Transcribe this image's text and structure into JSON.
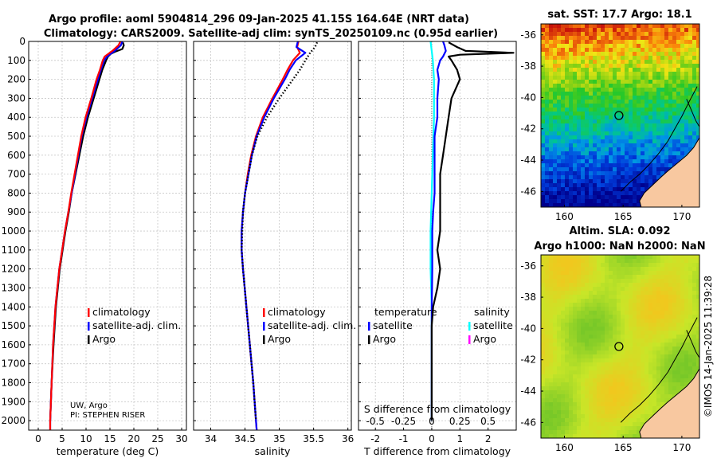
{
  "header": {
    "line1": "Argo profile: aoml 5904814_296 09-Jan-2025 41.15S 164.64E (NRT data)",
    "line2": "Climatology: CARS2009. Satellite-adj clim: synTS_20250109.nc (0.95d earlier)"
  },
  "colors": {
    "climatology": "#ff0000",
    "satellite": "#0000ff",
    "argo": "#000000",
    "sat_temp_diff": "#00ffff",
    "sat_sal_diff": "#ff00ff",
    "land": "#f8c8a0",
    "marker": "#000000"
  },
  "chart_data": [
    {
      "id": "temperature",
      "type": "line",
      "xlabel": "temperature (deg C)",
      "xlim": [
        -2,
        31
      ],
      "ylim": [
        0,
        2050
      ],
      "y_reversed": true,
      "xticks": [
        0,
        5,
        10,
        15,
        20,
        25,
        30
      ],
      "yticks": [
        0,
        100,
        200,
        300,
        400,
        500,
        600,
        700,
        800,
        900,
        1000,
        1100,
        1200,
        1300,
        1400,
        1500,
        1600,
        1700,
        1800,
        1900,
        2000
      ],
      "legend": [
        "climatology",
        "satellite-adj. clim.",
        "Argo"
      ],
      "legend_position": "lower-right",
      "annotation": [
        "UW, Argo",
        "PI: STEPHEN RISER"
      ],
      "series": [
        {
          "name": "climatology",
          "color": "#ff0000",
          "depth": [
            0,
            20,
            50,
            80,
            100,
            150,
            200,
            300,
            400,
            500,
            600,
            700,
            800,
            900,
            1000,
            1200,
            1400,
            1600,
            1800,
            2000,
            2050
          ],
          "values": [
            17.2,
            16.8,
            15.5,
            13.9,
            13.5,
            12.9,
            12.2,
            11.1,
            9.9,
            9.0,
            8.3,
            7.6,
            6.9,
            6.3,
            5.6,
            4.4,
            3.6,
            3.1,
            2.8,
            2.5,
            2.5
          ]
        },
        {
          "name": "satellite-adj. clim.",
          "color": "#0000ff",
          "depth": [
            0,
            20,
            50,
            80,
            100,
            150,
            200,
            300,
            400,
            500,
            600,
            700,
            800,
            900,
            1000,
            1200,
            1400,
            1600,
            1800,
            2000,
            2050
          ],
          "values": [
            17.6,
            17.3,
            16.0,
            14.4,
            13.8,
            13.1,
            12.5,
            11.3,
            10.1,
            9.1,
            8.4,
            7.7,
            7.0,
            6.3,
            5.6,
            4.4,
            3.6,
            3.1,
            2.8,
            2.5,
            2.5
          ]
        },
        {
          "name": "Argo",
          "color": "#000000",
          "depth": [
            5,
            20,
            40,
            55,
            65,
            80,
            100,
            150,
            200,
            300,
            400,
            500,
            600,
            700,
            800,
            900,
            1000,
            1200,
            1400,
            1600,
            1800,
            2000
          ],
          "values": [
            17.7,
            17.9,
            17.6,
            16.0,
            15.2,
            14.6,
            14.2,
            13.4,
            12.8,
            11.6,
            10.4,
            9.4,
            8.6,
            7.8,
            7.0,
            6.4,
            5.7,
            4.5,
            3.7,
            3.2,
            2.8,
            2.5
          ]
        }
      ]
    },
    {
      "id": "salinity",
      "type": "line",
      "xlabel": "salinity",
      "xlim": [
        33.75,
        36.05
      ],
      "ylim": [
        0,
        2050
      ],
      "y_reversed": true,
      "xticks": [
        34,
        34.5,
        35,
        35.5,
        36
      ],
      "xticklabels": [
        "34",
        "34.5",
        "35",
        "35.5",
        "36"
      ],
      "legend": [
        "climatology",
        "satellite-adj. clim.",
        "Argo"
      ],
      "legend_position": "lower-right",
      "series": [
        {
          "name": "climatology",
          "color": "#ff0000",
          "depth": [
            0,
            30,
            60,
            100,
            150,
            200,
            300,
            400,
            500,
            600,
            700,
            800,
            900,
            1000,
            1100,
            1200,
            1400,
            1600,
            1800,
            2000,
            2050
          ],
          "values": [
            35.28,
            35.26,
            35.3,
            35.2,
            35.12,
            35.05,
            34.9,
            34.76,
            34.66,
            34.59,
            34.54,
            34.5,
            34.47,
            34.45,
            34.45,
            34.47,
            34.52,
            34.57,
            34.62,
            34.66,
            34.67
          ]
        },
        {
          "name": "satellite-adj. clim.",
          "color": "#0000ff",
          "depth": [
            0,
            30,
            60,
            100,
            150,
            200,
            300,
            400,
            500,
            600,
            700,
            800,
            900,
            1000,
            1100,
            1200,
            1400,
            1600,
            1800,
            2000,
            2050
          ],
          "values": [
            35.27,
            35.25,
            35.38,
            35.24,
            35.15,
            35.08,
            34.92,
            34.78,
            34.67,
            34.6,
            34.55,
            34.5,
            34.47,
            34.45,
            34.45,
            34.47,
            34.52,
            34.57,
            34.62,
            34.66,
            34.67
          ]
        },
        {
          "name": "Argo",
          "color": "#000000",
          "style": "dotted",
          "depth": [
            5,
            30,
            60,
            100,
            150,
            200,
            300,
            400,
            500,
            600,
            700,
            800,
            900,
            1000,
            1100,
            1200,
            1400,
            1600,
            1800,
            2000
          ],
          "values": [
            35.55,
            35.52,
            35.45,
            35.38,
            35.3,
            35.2,
            35.0,
            34.82,
            34.68,
            34.6,
            34.55,
            34.5,
            34.47,
            34.46,
            34.45,
            34.47,
            34.52,
            34.57,
            34.62,
            34.66
          ]
        }
      ]
    },
    {
      "id": "difference",
      "type": "line",
      "xlabel_bottom": "T difference from climatology",
      "xlabel_top": "S difference from climatology",
      "xlim": [
        -2.6,
        3.0
      ],
      "ylim": [
        0,
        2050
      ],
      "y_reversed": true,
      "xticks_T": [
        -2,
        -1,
        0,
        1,
        2
      ],
      "xticks_S": [
        -0.5,
        -0.25,
        0,
        0.25,
        0.5
      ],
      "xticklabels_S": [
        "-0.5",
        "-0.25",
        "0",
        "0.25",
        "0.5"
      ],
      "S_scale_factor": 4,
      "legend_temperature": {
        "title": "temperature",
        "items": [
          "satellite",
          "Argo"
        ]
      },
      "legend_salinity": {
        "title": "salinity",
        "items": [
          "satellite",
          "Argo"
        ]
      },
      "series": [
        {
          "name": "sat T diff",
          "color": "#0000ff",
          "depth": [
            0,
            20,
            50,
            80,
            100,
            150,
            200,
            300,
            400,
            500,
            600,
            700,
            800,
            900,
            1000,
            1100,
            1200,
            1300,
            1400,
            1500,
            1600,
            2000
          ],
          "values": [
            0.4,
            0.45,
            0.5,
            0.4,
            0.3,
            0.2,
            0.25,
            0.2,
            0.2,
            0.1,
            0.1,
            0.1,
            0.1,
            0.05,
            0.02,
            0.02,
            0.02,
            0.01,
            0.0,
            0.0,
            0.0,
            0.0
          ]
        },
        {
          "name": "Argo T diff",
          "color": "#000000",
          "depth": [
            5,
            30,
            50,
            60,
            70,
            80,
            100,
            150,
            200,
            300,
            400,
            500,
            600,
            700,
            800,
            900,
            1000,
            1100,
            1200,
            1300,
            1400,
            1500,
            2000
          ],
          "values": [
            0.6,
            0.9,
            1.2,
            2.9,
            1.0,
            0.6,
            0.7,
            0.9,
            1.0,
            0.7,
            0.6,
            0.5,
            0.4,
            0.3,
            0.3,
            0.3,
            0.3,
            0.2,
            0.3,
            0.2,
            0.05,
            0.0,
            0.0
          ]
        },
        {
          "name": "sat S diff",
          "color": "#00ffff",
          "depth": [
            0,
            50,
            100,
            200,
            400,
            600,
            800,
            1000,
            1200,
            1400,
            1600,
            2000
          ],
          "values": [
            -0.01,
            0.0,
            0.01,
            0.02,
            0.02,
            0.01,
            0.0,
            -0.01,
            -0.01,
            0.0,
            0.0,
            0.0
          ]
        }
      ]
    },
    {
      "id": "sst_map",
      "type": "heatmap",
      "title": "sat. SST: 17.7 Argo: 18.1",
      "xlim": [
        158,
        171.5
      ],
      "ylim": [
        -47,
        -35.3
      ],
      "xticks": [
        160,
        165,
        170
      ],
      "yticks": [
        -36,
        -38,
        -40,
        -42,
        -44,
        -46
      ],
      "marker": {
        "lon": 164.64,
        "lat": -41.15
      }
    },
    {
      "id": "sla_map",
      "type": "heatmap",
      "title_line1": "Altim. SLA: 0.092",
      "title_line2": "Argo h1000: NaN h2000: NaN",
      "xlim": [
        158,
        171.5
      ],
      "ylim": [
        -47,
        -35.3
      ],
      "xticks": [
        160,
        165,
        170
      ],
      "yticks": [
        -36,
        -38,
        -40,
        -42,
        -44,
        -46
      ],
      "marker": {
        "lon": 164.64,
        "lat": -41.15
      }
    }
  ],
  "stamp": "©IMOS 14-Jan-2025 11:39:28"
}
